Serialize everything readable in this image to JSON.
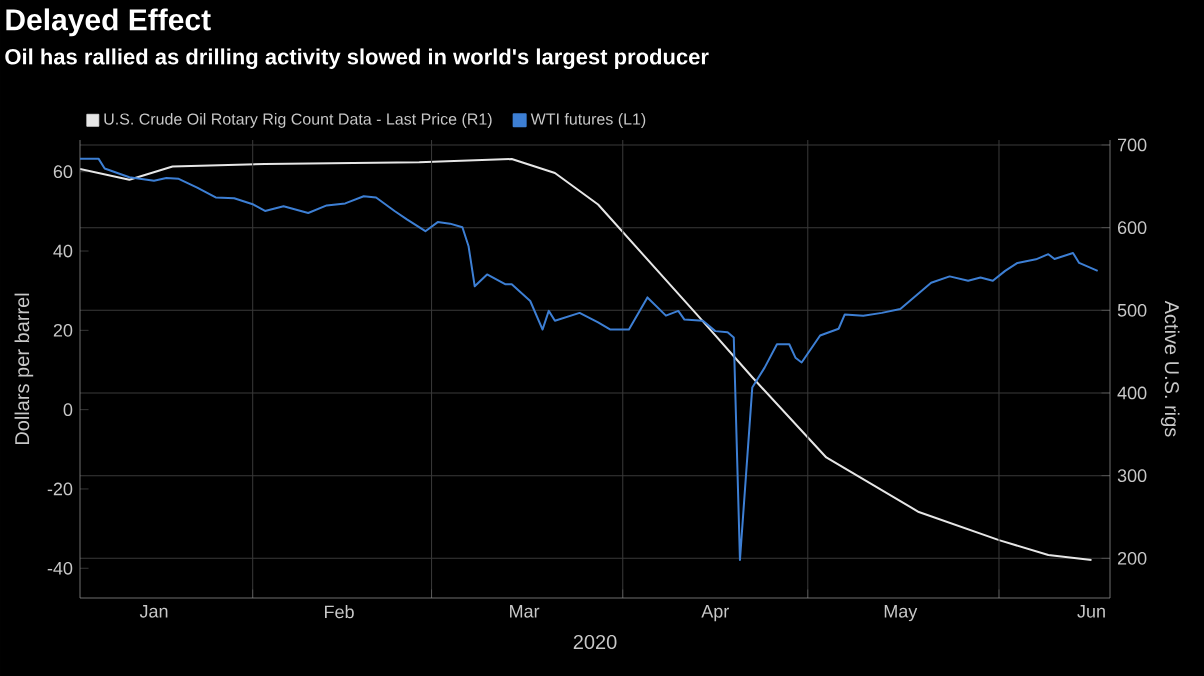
{
  "chart_data": {
    "type": "line",
    "title": "Delayed Effect",
    "subtitle": "Oil has rallied as drilling activity slowed in world's largest producer",
    "xlabel": "2020",
    "ylabel": "Dollars per barrel",
    "y2label": "Active U.S. rigs",
    "series": [
      {
        "name": "U.S. Crude Oil Rotary Rig Count Data - Last Price (R1)",
        "color": "#e6e6e6",
        "axis": "y2",
        "x": [
          "2020-01-04",
          "2020-01-12",
          "2020-01-19",
          "2020-02-03",
          "2020-02-28",
          "2020-03-14",
          "2020-03-21",
          "2020-03-28",
          "2020-04-13",
          "2020-04-22",
          "2020-05-04",
          "2020-05-19",
          "2020-06-01",
          "2020-06-09",
          "2020-06-16"
        ],
        "values": [
          671,
          658,
          674,
          677,
          679,
          683,
          666,
          628,
          495,
          419,
          322,
          256,
          222,
          204,
          198
        ]
      },
      {
        "name": "WTI futures (L1)",
        "color": "#3d7fd4",
        "x": [
          "2020-01-04",
          "2020-01-07",
          "2020-01-08",
          "2020-01-10",
          "2020-01-12",
          "2020-01-16",
          "2020-01-18",
          "2020-01-20",
          "2020-01-23",
          "2020-01-26",
          "2020-01-29",
          "2020-02-01",
          "2020-02-03",
          "2020-02-06",
          "2020-02-10",
          "2020-02-13",
          "2020-02-16",
          "2020-02-19",
          "2020-02-21",
          "2020-02-24",
          "2020-02-26",
          "2020-02-29",
          "2020-03-02",
          "2020-03-04",
          "2020-03-06",
          "2020-03-07",
          "2020-03-08",
          "2020-03-10",
          "2020-03-13",
          "2020-03-14",
          "2020-03-17",
          "2020-03-19",
          "2020-03-20",
          "2020-03-21",
          "2020-03-25",
          "2020-03-28",
          "2020-03-30",
          "2020-04-02",
          "2020-04-05",
          "2020-04-08",
          "2020-04-10",
          "2020-04-11",
          "2020-04-14",
          "2020-04-16",
          "2020-04-18",
          "2020-04-19",
          "2020-04-20",
          "2020-04-22",
          "2020-04-24",
          "2020-04-26",
          "2020-04-28",
          "2020-04-29",
          "2020-04-30",
          "2020-05-03",
          "2020-05-06",
          "2020-05-07",
          "2020-05-10",
          "2020-05-13",
          "2020-05-16",
          "2020-05-21",
          "2020-05-24",
          "2020-05-27",
          "2020-05-29",
          "2020-05-31",
          "2020-06-02",
          "2020-06-04",
          "2020-06-07",
          "2020-06-09",
          "2020-06-10",
          "2020-06-13",
          "2020-06-14",
          "2020-06-17"
        ],
        "values": [
          63.3,
          63.3,
          60.8,
          59.7,
          58.6,
          57.7,
          58.4,
          58.2,
          56,
          53.5,
          53.3,
          51.8,
          50.1,
          51.3,
          49.6,
          51.5,
          52,
          53.8,
          53.5,
          50.1,
          48,
          45,
          47.3,
          46.9,
          46,
          41.2,
          31.1,
          34.1,
          31.6,
          31.6,
          27.4,
          20.2,
          24.9,
          22.4,
          24.4,
          22,
          20.2,
          20.2,
          28.3,
          23.7,
          24.9,
          22.7,
          22.4,
          19.8,
          19.5,
          18.2,
          -37.9,
          5.6,
          10.6,
          16.5,
          16.5,
          13.1,
          11.9,
          18.7,
          20.4,
          24,
          23.7,
          24.4,
          25.4,
          32,
          33.6,
          32.5,
          33.3,
          32.5,
          35,
          37,
          37.9,
          39.2,
          38,
          39.5,
          37,
          35
        ]
      }
    ],
    "xlim": [
      "2020-01-04",
      "2020-06-19"
    ],
    "xticks": [
      {
        "value": "2020-02-01",
        "label": null
      },
      {
        "value": "2020-03-01",
        "label": null
      },
      {
        "value": "2020-04-01",
        "label": null
      },
      {
        "value": "2020-05-01",
        "label": null
      },
      {
        "value": "2020-06-01",
        "label": null
      },
      {
        "value": "2020-01-16",
        "label": "Jan"
      },
      {
        "value": "2020-02-15",
        "label": "Feb"
      },
      {
        "value": "2020-03-16",
        "label": "Mar"
      },
      {
        "value": "2020-04-16",
        "label": "Apr"
      },
      {
        "value": "2020-05-16",
        "label": "May"
      },
      {
        "value": "2020-06-16",
        "label": "Jun"
      }
    ],
    "ylim": [
      -47.5,
      68
    ],
    "yticks": [
      -40,
      -20,
      0,
      20,
      40,
      60
    ],
    "y2lim": [
      152,
      706
    ],
    "y2ticks": [
      200,
      300,
      400,
      500,
      600,
      700
    ],
    "grid": true,
    "legend": "top left"
  }
}
